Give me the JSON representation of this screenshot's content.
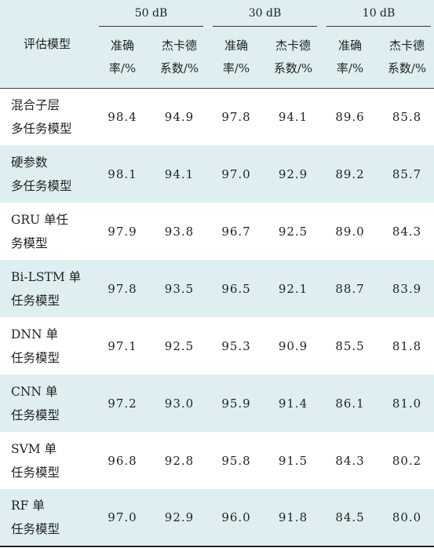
{
  "header": {
    "model_col": "评估模型",
    "groups": [
      "50 dB",
      "30 dB",
      "10 dB"
    ],
    "sub_cols": [
      {
        "line1": "准确",
        "line2": "率/%"
      },
      {
        "line1": "杰卡德",
        "line2": "系数/%"
      }
    ]
  },
  "rows": [
    {
      "name1": "混合子层",
      "name2": "多任务模型",
      "vals": [
        "98.4",
        "94.9",
        "97.8",
        "94.1",
        "89.6",
        "85.8"
      ]
    },
    {
      "name1": "硬参数",
      "name2": "多任务模型",
      "vals": [
        "98.1",
        "94.1",
        "97.0",
        "92.9",
        "89.2",
        "85.7"
      ]
    },
    {
      "name1": "GRU 单任",
      "name2": "务模型",
      "vals": [
        "97.9",
        "93.8",
        "96.7",
        "92.5",
        "89.0",
        "84.3"
      ]
    },
    {
      "name1": "Bi-LSTM 单",
      "name2": "任务模型",
      "vals": [
        "97.8",
        "93.5",
        "96.5",
        "92.1",
        "88.7",
        "83.9"
      ]
    },
    {
      "name1": "DNN 单",
      "name2": "任务模型",
      "vals": [
        "97.1",
        "92.5",
        "95.3",
        "90.9",
        "85.5",
        "81.8"
      ]
    },
    {
      "name1": "CNN 单",
      "name2": "任务模型",
      "vals": [
        "97.2",
        "93.0",
        "95.9",
        "91.4",
        "86.1",
        "81.0"
      ]
    },
    {
      "name1": "SVM 单",
      "name2": "任务模型",
      "vals": [
        "96.8",
        "92.8",
        "95.8",
        "91.5",
        "84.3",
        "80.2"
      ]
    },
    {
      "name1": "RF 单",
      "name2": "任务模型",
      "vals": [
        "97.0",
        "92.9",
        "96.0",
        "91.8",
        "84.5",
        "80.0"
      ]
    }
  ]
}
